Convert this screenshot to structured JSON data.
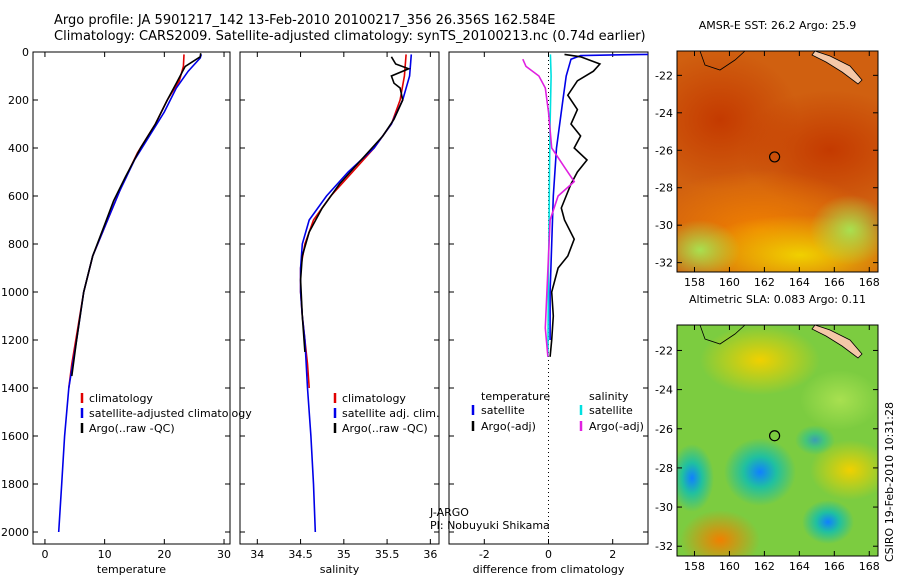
{
  "header": {
    "line1": "Argo profile: JA 5901217_142 13-Feb-2010 20100217_356 26.356S 162.584E",
    "line2": "Climatology: CARS2009. Satellite-adjusted climatology: synTS_20100213.nc (0.74d earlier)"
  },
  "credit": "CSIRO 19-Feb-2010 10:31:28",
  "colors": {
    "black": "#000000",
    "red": "#e00000",
    "blue": "#0000e8",
    "cyan": "#00e0e0",
    "magenta": "#e020e0"
  },
  "chart_data": [
    {
      "type": "line",
      "panel": "temperature",
      "xlabel": "temperature",
      "ylabel": "",
      "xlim": [
        -2,
        31
      ],
      "ylim": [
        2050,
        0
      ],
      "xticks": [
        0,
        10,
        20,
        30
      ],
      "yticks": [
        0,
        200,
        400,
        600,
        800,
        1000,
        1200,
        1400,
        1600,
        1800,
        2000
      ],
      "legend": [
        "climatology",
        "satellite-adjusted climatology",
        "Argo(..raw -QC)"
      ],
      "legend_placement": "lower-right",
      "series": [
        {
          "name": "climatology",
          "color": "red",
          "points": [
            [
              23.3,
              10
            ],
            [
              23.2,
              60
            ],
            [
              22.5,
              120
            ],
            [
              20.5,
              200
            ],
            [
              18.5,
              300
            ],
            [
              15.5,
              420
            ],
            [
              13.0,
              550
            ],
            [
              10.5,
              700
            ],
            [
              8.0,
              850
            ],
            [
              6.5,
              1000
            ],
            [
              5.5,
              1150
            ],
            [
              4.5,
              1300
            ],
            [
              4.0,
              1400
            ]
          ]
        },
        {
          "name": "satellite-adjusted climatology",
          "color": "blue",
          "points": [
            [
              26.2,
              10
            ],
            [
              26.0,
              25
            ],
            [
              24.0,
              80
            ],
            [
              22.0,
              150
            ],
            [
              20.0,
              250
            ],
            [
              17.5,
              350
            ],
            [
              15.0,
              450
            ],
            [
              12.5,
              580
            ],
            [
              10.5,
              700
            ],
            [
              8.0,
              850
            ],
            [
              6.5,
              1000
            ],
            [
              5.3,
              1200
            ],
            [
              4.0,
              1400
            ],
            [
              3.3,
              1600
            ],
            [
              2.8,
              1800
            ],
            [
              2.3,
              2000
            ]
          ]
        },
        {
          "name": "Argo(..raw -QC)",
          "color": "black",
          "points": [
            [
              26.1,
              5
            ],
            [
              26.0,
              20
            ],
            [
              23.5,
              60
            ],
            [
              22.0,
              130
            ],
            [
              20.5,
              200
            ],
            [
              18.5,
              300
            ],
            [
              16.0,
              400
            ],
            [
              13.5,
              520
            ],
            [
              11.5,
              620
            ],
            [
              10.0,
              720
            ],
            [
              8.0,
              850
            ],
            [
              6.5,
              1000
            ],
            [
              5.3,
              1200
            ],
            [
              4.5,
              1350
            ]
          ]
        }
      ]
    },
    {
      "type": "line",
      "panel": "salinity",
      "xlabel": "salinity",
      "ylabel": "",
      "xlim": [
        33.8,
        36.1
      ],
      "ylim": [
        2050,
        0
      ],
      "xticks": [
        34,
        34.5,
        35,
        35.5,
        36
      ],
      "yticks": [
        0,
        200,
        400,
        600,
        800,
        1000,
        1200,
        1400,
        1600,
        1800,
        2000
      ],
      "legend": [
        "climatology",
        "satellite adj. clim.",
        "Argo(..raw -QC)"
      ],
      "legend_placement": "lower-right",
      "annotation": [
        "J-ARGO",
        "PI: Nobuyuki Shikama"
      ],
      "series": [
        {
          "name": "climatology",
          "color": "red",
          "points": [
            [
              35.72,
              10
            ],
            [
              35.7,
              100
            ],
            [
              35.65,
              200
            ],
            [
              35.55,
              300
            ],
            [
              35.35,
              400
            ],
            [
              35.1,
              500
            ],
            [
              34.85,
              600
            ],
            [
              34.65,
              700
            ],
            [
              34.55,
              800
            ],
            [
              34.5,
              900
            ],
            [
              34.5,
              1000
            ],
            [
              34.52,
              1100
            ],
            [
              34.55,
              1200
            ],
            [
              34.58,
              1300
            ],
            [
              34.6,
              1400
            ]
          ]
        },
        {
          "name": "satellite adj. clim.",
          "color": "blue",
          "points": [
            [
              35.78,
              10
            ],
            [
              35.76,
              100
            ],
            [
              35.68,
              200
            ],
            [
              35.55,
              300
            ],
            [
              35.35,
              400
            ],
            [
              35.05,
              500
            ],
            [
              34.8,
              600
            ],
            [
              34.6,
              700
            ],
            [
              34.52,
              800
            ],
            [
              34.5,
              900
            ],
            [
              34.5,
              1000
            ],
            [
              34.52,
              1100
            ],
            [
              34.55,
              1200
            ],
            [
              34.58,
              1400
            ],
            [
              34.62,
              1600
            ],
            [
              34.65,
              1800
            ],
            [
              34.67,
              2000
            ]
          ]
        },
        {
          "name": "Argo(..raw -QC)",
          "color": "black",
          "points": [
            [
              35.55,
              20
            ],
            [
              35.6,
              50
            ],
            [
              35.75,
              70
            ],
            [
              35.55,
              100
            ],
            [
              35.58,
              130
            ],
            [
              35.65,
              150
            ],
            [
              35.68,
              200
            ],
            [
              35.58,
              280
            ],
            [
              35.45,
              350
            ],
            [
              35.2,
              450
            ],
            [
              34.95,
              550
            ],
            [
              34.75,
              650
            ],
            [
              34.6,
              750
            ],
            [
              34.52,
              850
            ],
            [
              34.5,
              950
            ],
            [
              34.52,
              1100
            ],
            [
              34.55,
              1250
            ]
          ]
        }
      ]
    },
    {
      "type": "line",
      "panel": "difference",
      "xlabel": "difference from climatology",
      "ylabel": "",
      "xlim": [
        -3.1,
        3.1
      ],
      "ylim": [
        2050,
        0
      ],
      "xticks": [
        -2,
        0,
        2
      ],
      "yticks": [
        0,
        200,
        400,
        600,
        800,
        1000,
        1200,
        1400,
        1600,
        1800,
        2000
      ],
      "legend": [
        "temperature",
        "satellite",
        "Argo(-adj)",
        "salinity",
        "satellite",
        "Argo(-adj)"
      ],
      "legend_placement": "lower-center",
      "series": [
        {
          "name": "satellite",
          "group": "temperature",
          "color": "blue",
          "points": [
            [
              3.1,
              10
            ],
            [
              2.0,
              12
            ],
            [
              1.0,
              15
            ],
            [
              0.7,
              30
            ],
            [
              0.55,
              100
            ],
            [
              0.45,
              200
            ],
            [
              0.35,
              300
            ],
            [
              0.25,
              400
            ],
            [
              0.2,
              500
            ],
            [
              0.15,
              600
            ],
            [
              0.1,
              800
            ],
            [
              0.05,
              1000
            ],
            [
              0.05,
              1200
            ]
          ]
        },
        {
          "name": "Argo(-adj)",
          "group": "temperature",
          "color": "black",
          "points": [
            [
              0.5,
              10
            ],
            [
              1.0,
              20
            ],
            [
              1.6,
              50
            ],
            [
              1.4,
              80
            ],
            [
              0.9,
              120
            ],
            [
              0.6,
              180
            ],
            [
              0.9,
              240
            ],
            [
              0.7,
              300
            ],
            [
              1.0,
              350
            ],
            [
              0.8,
              400
            ],
            [
              1.2,
              450
            ],
            [
              0.9,
              500
            ],
            [
              0.7,
              550
            ],
            [
              0.4,
              650
            ],
            [
              0.5,
              700
            ],
            [
              0.8,
              780
            ],
            [
              0.6,
              850
            ],
            [
              0.3,
              900
            ],
            [
              0.1,
              1000
            ],
            [
              0.15,
              1100
            ],
            [
              0.1,
              1200
            ],
            [
              0.05,
              1270
            ]
          ]
        },
        {
          "name": "satellite",
          "group": "salinity",
          "color": "cyan",
          "points": [
            [
              0.06,
              10
            ],
            [
              0.08,
              100
            ],
            [
              0.05,
              300
            ],
            [
              0.03,
              500
            ],
            [
              0.02,
              700
            ],
            [
              0.0,
              900
            ],
            [
              -0.01,
              1100
            ],
            [
              -0.02,
              1270
            ]
          ]
        },
        {
          "name": "Argo(-adj)",
          "group": "salinity",
          "color": "magenta",
          "points": [
            [
              -0.8,
              30
            ],
            [
              -0.7,
              60
            ],
            [
              -0.3,
              100
            ],
            [
              -0.1,
              150
            ],
            [
              0.0,
              250
            ],
            [
              0.1,
              400
            ],
            [
              0.5,
              480
            ],
            [
              0.8,
              540
            ],
            [
              0.3,
              600
            ],
            [
              0.05,
              700
            ],
            [
              0.0,
              850
            ],
            [
              -0.05,
              1000
            ],
            [
              -0.1,
              1150
            ],
            [
              -0.02,
              1270
            ]
          ]
        }
      ]
    },
    {
      "type": "heatmap",
      "panel": "sst-map",
      "title": "AMSR-E SST: 26.2 Argo: 25.9",
      "xlim": [
        157,
        168.5
      ],
      "ylim": [
        -32.5,
        -20.7
      ],
      "xticks": [
        158,
        160,
        162,
        164,
        166,
        168
      ],
      "yticks": [
        -22,
        -24,
        -26,
        -28,
        -30,
        -32
      ],
      "marker": [
        162.584,
        -26.356
      ]
    },
    {
      "type": "heatmap",
      "panel": "sla-map",
      "title": "Altimetric SLA: 0.083 Argo: 0.11",
      "xlim": [
        157,
        168.5
      ],
      "ylim": [
        -32.5,
        -20.7
      ],
      "xticks": [
        158,
        160,
        162,
        164,
        166,
        168
      ],
      "yticks": [
        -22,
        -24,
        -26,
        -28,
        -30,
        -32
      ],
      "marker": [
        162.584,
        -26.356
      ]
    }
  ]
}
